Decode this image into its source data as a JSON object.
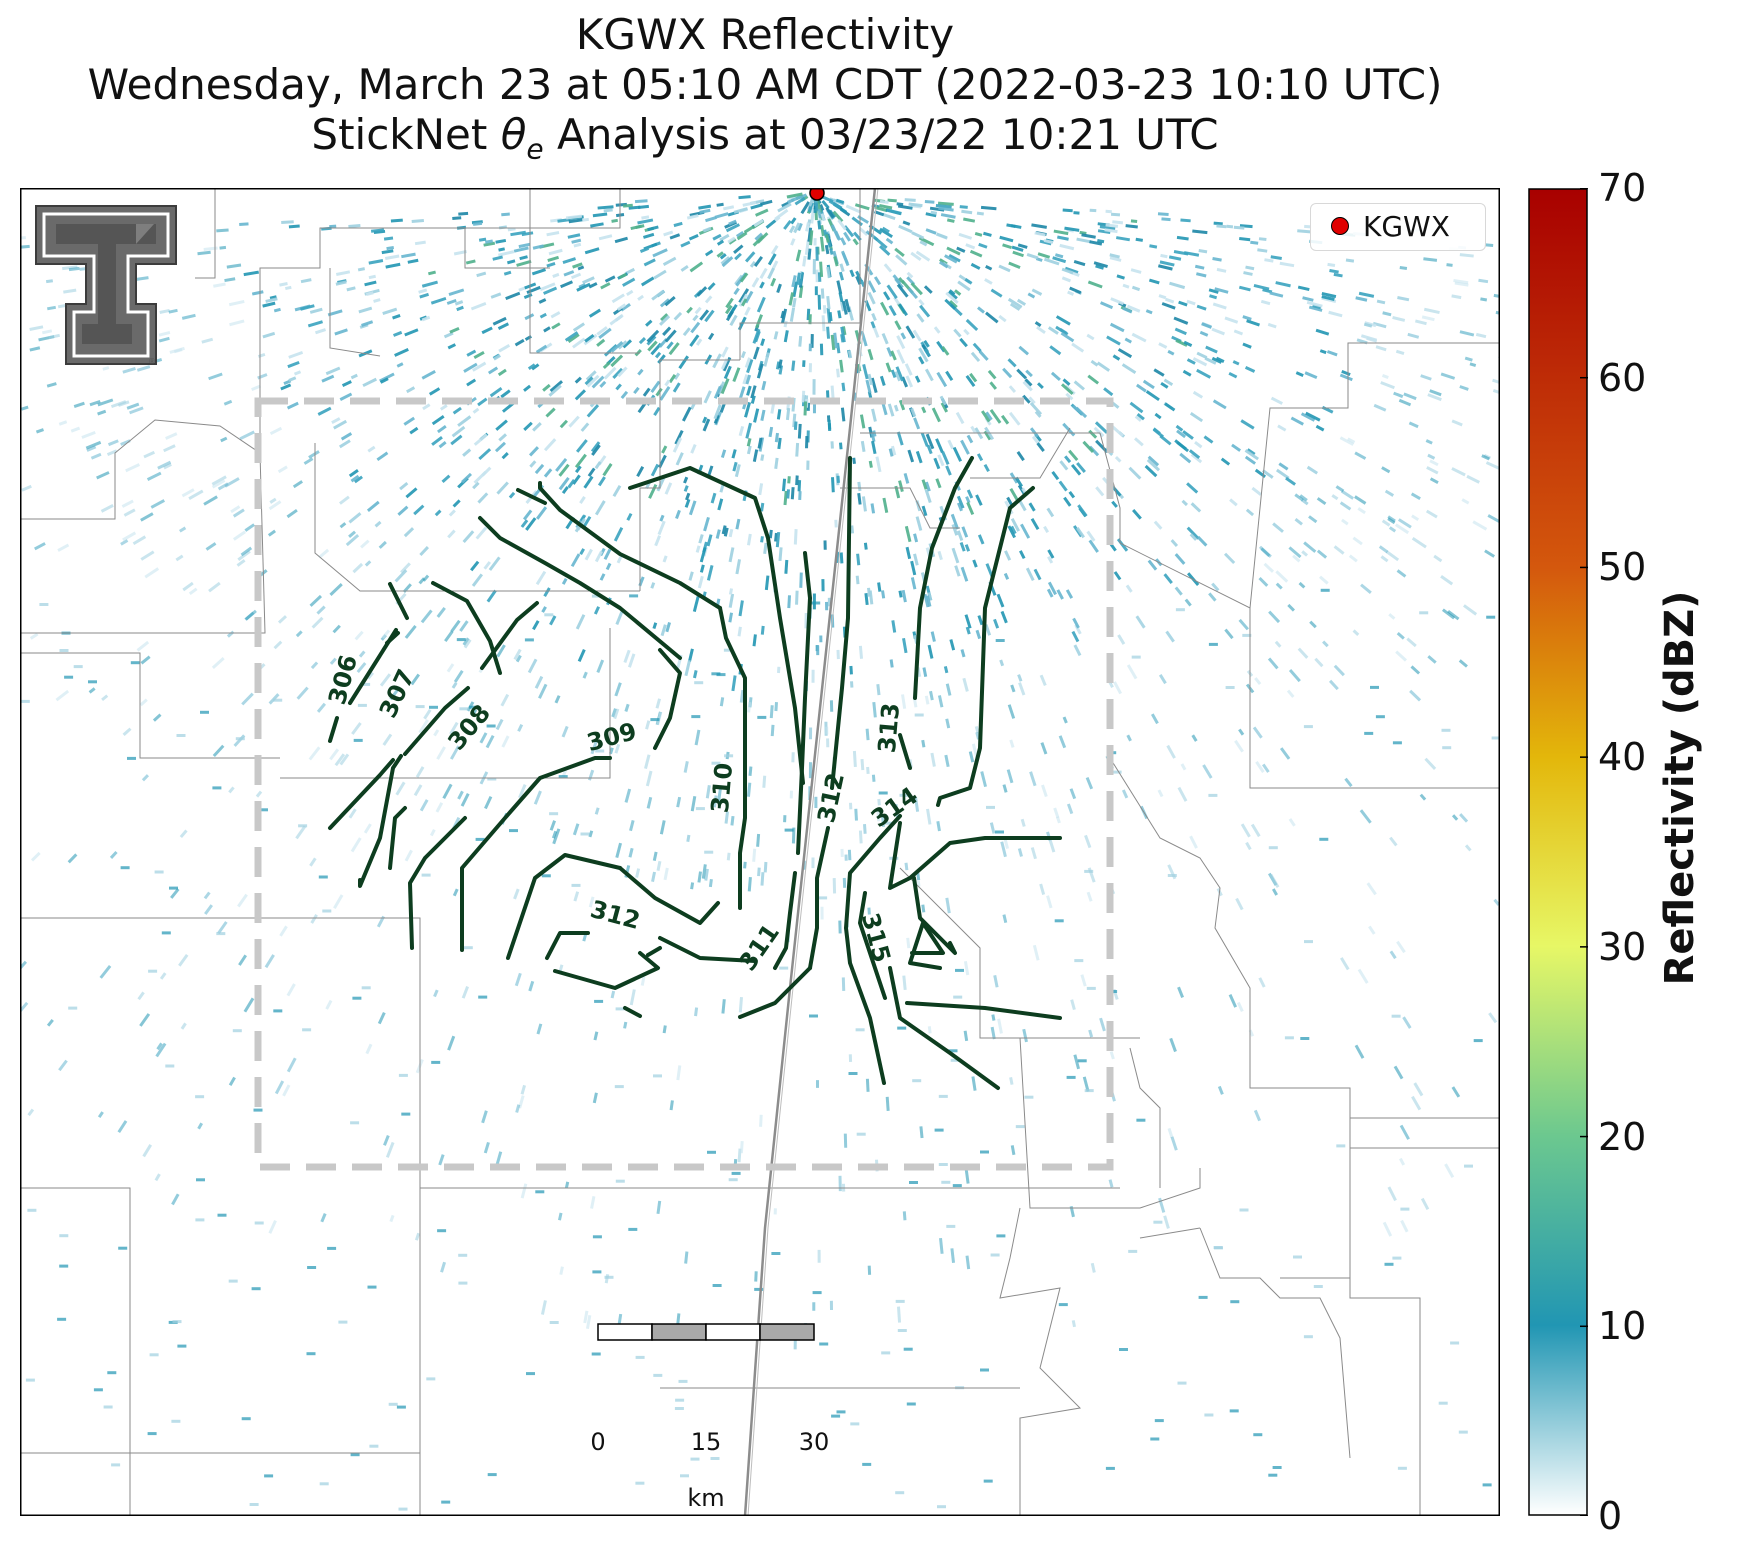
{
  "title": {
    "line1": "KGWX Reflectivity",
    "line2": "Wednesday, March 23 at 05:10 AM CDT (2022-03-23 10:10 UTC)",
    "line3_prefix": "StickNet ",
    "line3_symbol": "θ",
    "line3_subscript": "e",
    "line3_suffix": " Analysis at 03/23/22 10:21 UTC"
  },
  "legend": {
    "label": "KGWX",
    "marker_color": "#e00000"
  },
  "colorbar": {
    "label": "Reflectivity (dBZ)",
    "ticks": [
      "0",
      "10",
      "20",
      "30",
      "40",
      "50",
      "60",
      "70"
    ],
    "range": [
      0,
      70
    ],
    "colors": [
      "#ffffff",
      "#2196b3",
      "#6cc88f",
      "#e7f766",
      "#e3b70b",
      "#d4580d",
      "#a80000"
    ]
  },
  "contours": {
    "color": "#0d3d1f",
    "labels": [
      "306",
      "307",
      "308",
      "309",
      "310",
      "311",
      "312",
      "312",
      "313",
      "314",
      "315"
    ]
  },
  "scale_bar": {
    "ticks": [
      "0",
      "15",
      "30"
    ],
    "unit": "km"
  },
  "analysis_box": {
    "style": "dashed",
    "color": "#c8c8c8"
  },
  "logo": {
    "name": "texas-tech-double-t"
  }
}
